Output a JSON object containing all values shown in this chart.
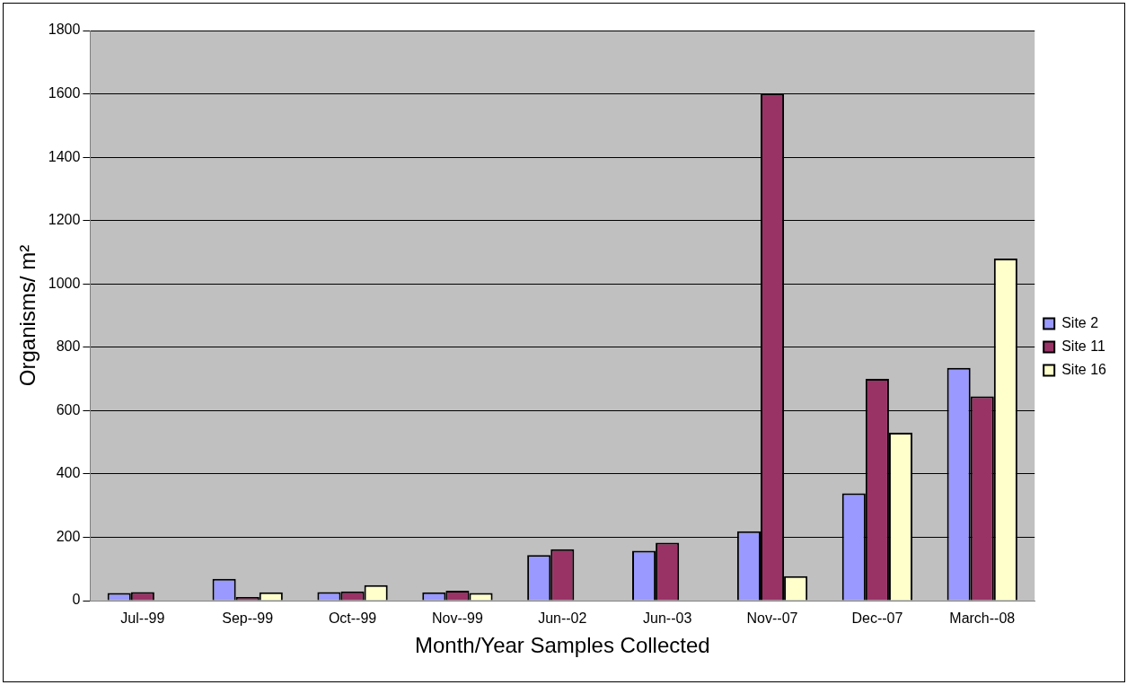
{
  "chart_data": {
    "type": "bar",
    "xlabel": "Month/Year Samples Collected",
    "ylabel": "Organisms/ m²",
    "categories": [
      "Jul--99",
      "Sep--99",
      "Oct--99",
      "Nov--99",
      "Jun--02",
      "Jun--03",
      "Nov--07",
      "Dec--07",
      "March--08"
    ],
    "series": [
      {
        "name": "Site 2",
        "color": "#9999ff",
        "values": [
          24,
          69,
          27,
          26,
          144,
          157,
          219,
          339,
          735
        ]
      },
      {
        "name": "Site 11",
        "color": "#993366",
        "values": [
          27,
          11,
          29,
          31,
          162,
          183,
          1600,
          700,
          645
        ]
      },
      {
        "name": "Site 16",
        "color": "#ffffcc",
        "values": [
          null,
          26,
          49,
          24,
          null,
          null,
          77,
          530,
          1080
        ]
      }
    ],
    "ylim": [
      0,
      1800
    ],
    "yticks": [
      0,
      200,
      400,
      600,
      800,
      1000,
      1200,
      1400,
      1600,
      1800
    ],
    "grid": "y",
    "legend": "right"
  }
}
